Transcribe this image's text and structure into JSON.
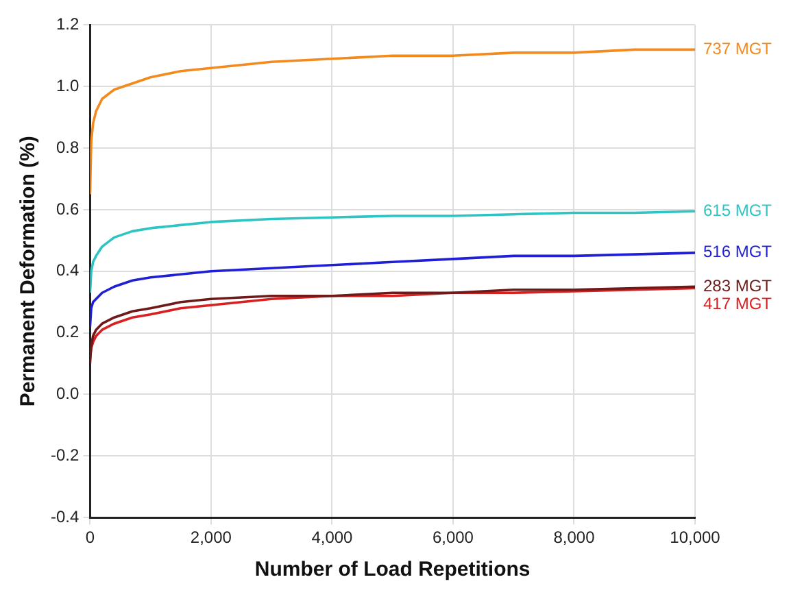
{
  "chart_data": {
    "type": "line",
    "xlabel": "Number of Load Repetitions",
    "ylabel": "Permanent Deformation (%)",
    "xlim": [
      0,
      10000
    ],
    "ylim": [
      -0.4,
      1.2
    ],
    "xticks": [
      0,
      {
        "value": 2000,
        "label": "2,000"
      },
      {
        "value": 4000,
        "label": "4,000"
      },
      {
        "value": 6000,
        "label": "6,000"
      },
      {
        "value": 8000,
        "label": "8,000"
      },
      {
        "value": 10000,
        "label": "10,000"
      }
    ],
    "yticks": [
      {
        "value": -0.4,
        "label": "-0.4"
      },
      {
        "value": -0.2,
        "label": "-0.2"
      },
      {
        "value": 0,
        "label": "0.0"
      },
      {
        "value": 0.2,
        "label": "0.2"
      },
      {
        "value": 0.4,
        "label": "0.4"
      },
      {
        "value": 0.6,
        "label": "0.6"
      },
      {
        "value": 0.8,
        "label": "0.8"
      },
      {
        "value": 1.0,
        "label": "1.0"
      },
      {
        "value": 1.2,
        "label": "1.2"
      }
    ],
    "grid": true,
    "legend": false,
    "marker": "none",
    "line_style": "solid",
    "series": [
      {
        "name": "737 MGT",
        "color": "#f28a1e",
        "x": [
          0,
          20,
          50,
          100,
          200,
          400,
          700,
          1000,
          1500,
          2000,
          3000,
          4000,
          5000,
          6000,
          7000,
          8000,
          9000,
          10000
        ],
        "values": [
          0.65,
          0.82,
          0.88,
          0.92,
          0.96,
          0.99,
          1.01,
          1.03,
          1.05,
          1.06,
          1.08,
          1.09,
          1.1,
          1.1,
          1.11,
          1.11,
          1.12,
          1.12
        ]
      },
      {
        "name": "615 MGT",
        "color": "#2ec4c4",
        "x": [
          0,
          20,
          50,
          100,
          200,
          400,
          700,
          1000,
          1500,
          2000,
          3000,
          4000,
          5000,
          6000,
          7000,
          8000,
          9000,
          10000
        ],
        "values": [
          0.33,
          0.4,
          0.43,
          0.45,
          0.48,
          0.51,
          0.53,
          0.54,
          0.55,
          0.56,
          0.57,
          0.575,
          0.58,
          0.58,
          0.585,
          0.59,
          0.59,
          0.595
        ]
      },
      {
        "name": "516 MGT",
        "color": "#1f1fd6",
        "x": [
          0,
          20,
          50,
          100,
          200,
          400,
          700,
          1000,
          1500,
          2000,
          3000,
          4000,
          5000,
          6000,
          7000,
          8000,
          9000,
          10000
        ],
        "values": [
          0.22,
          0.28,
          0.3,
          0.31,
          0.33,
          0.35,
          0.37,
          0.38,
          0.39,
          0.4,
          0.41,
          0.42,
          0.43,
          0.44,
          0.45,
          0.45,
          0.455,
          0.46
        ]
      },
      {
        "name": "283 MGT",
        "color": "#6e1a1a",
        "x": [
          0,
          20,
          50,
          100,
          200,
          400,
          700,
          1000,
          1500,
          2000,
          3000,
          4000,
          5000,
          6000,
          7000,
          8000,
          9000,
          10000
        ],
        "values": [
          0.1,
          0.16,
          0.19,
          0.21,
          0.23,
          0.25,
          0.27,
          0.28,
          0.3,
          0.31,
          0.32,
          0.32,
          0.33,
          0.33,
          0.34,
          0.34,
          0.345,
          0.35
        ]
      },
      {
        "name": "417 MGT",
        "color": "#d92020",
        "x": [
          0,
          20,
          50,
          100,
          200,
          400,
          700,
          1000,
          1500,
          2000,
          3000,
          4000,
          5000,
          6000,
          7000,
          8000,
          9000,
          10000
        ],
        "values": [
          0.12,
          0.15,
          0.17,
          0.19,
          0.21,
          0.23,
          0.25,
          0.26,
          0.28,
          0.29,
          0.31,
          0.32,
          0.32,
          0.33,
          0.33,
          0.335,
          0.34,
          0.345
        ]
      }
    ]
  }
}
